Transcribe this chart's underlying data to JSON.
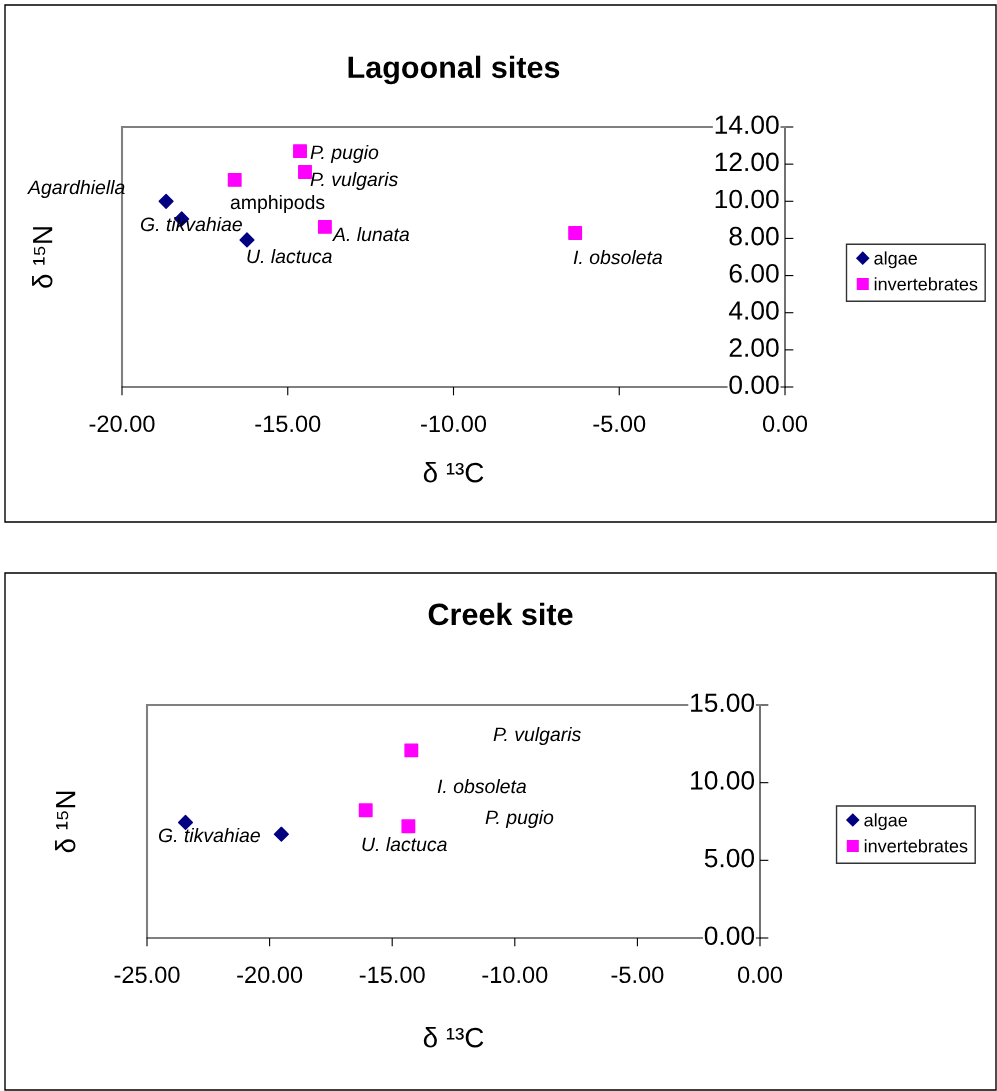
{
  "chart_data": [
    {
      "type": "scatter",
      "title": "Lagoonal sites",
      "xlabel": "δ ¹³C",
      "ylabel": "δ ¹⁵N",
      "series": [
        {
          "name": "algae",
          "color": "#000080",
          "marker": "diamond",
          "x": [
            -18.67,
            -18.2,
            -16.23
          ],
          "values": [
            10.0,
            9.05,
            7.92
          ]
        },
        {
          "name": "invertebrates",
          "color": "#ff00ff",
          "marker": "square",
          "x": [
            -16.6,
            -14.63,
            -14.48,
            -13.88,
            -6.33
          ],
          "values": [
            11.15,
            12.7,
            11.58,
            8.62,
            8.29
          ]
        }
      ],
      "annotations": [
        "Agardhiella",
        "amphipods",
        "G. tikvahiae",
        "U. lactuca",
        "P. pugio",
        "P. vulgaris",
        "A. lunata",
        "I. obsoleta"
      ],
      "xlim": [
        -20,
        0
      ],
      "xticks": [
        {
          "value": -20,
          "label": "-20.00"
        },
        {
          "value": -15,
          "label": "-15.00"
        },
        {
          "value": -10,
          "label": "-10.00"
        },
        {
          "value": -5,
          "label": "-5.00"
        },
        {
          "value": 0,
          "label": "0.00"
        }
      ],
      "ylim": [
        0,
        14
      ],
      "yticks": [
        {
          "value": 0,
          "label": "0.00"
        },
        {
          "value": 2,
          "label": "2.00"
        },
        {
          "value": 4,
          "label": "4.00"
        },
        {
          "value": 6,
          "label": "6.00"
        },
        {
          "value": 8,
          "label": "8.00"
        },
        {
          "value": 10,
          "label": "10.00"
        },
        {
          "value": 12,
          "label": "12.00"
        },
        {
          "value": 14,
          "label": "14.00"
        }
      ],
      "grid": false,
      "legend": "right"
    },
    {
      "type": "scatter",
      "title": "Creek site",
      "xlabel": "δ ¹³C",
      "ylabel": "δ ¹⁵N",
      "series": [
        {
          "name": "algae",
          "color": "#000080",
          "marker": "diamond",
          "x": [
            -23.43,
            -19.52
          ],
          "values": [
            7.44,
            6.68
          ]
        },
        {
          "name": "invertebrates",
          "color": "#ff00ff",
          "marker": "square",
          "x": [
            -14.22,
            -16.08,
            -14.34
          ],
          "values": [
            12.08,
            8.22,
            7.19
          ]
        }
      ],
      "annotations": [
        "P. vulgaris",
        "I. obsoleta",
        "P. pugio",
        "G. tikvahiae",
        "U. lactuca"
      ],
      "xlim": [
        -25,
        0
      ],
      "xticks": [
        {
          "value": -25,
          "label": "-25.00"
        },
        {
          "value": -20,
          "label": "-20.00"
        },
        {
          "value": -15,
          "label": "-15.00"
        },
        {
          "value": -10,
          "label": "-10.00"
        },
        {
          "value": -5,
          "label": "-5.00"
        },
        {
          "value": 0,
          "label": "0.00"
        }
      ],
      "ylim": [
        0,
        15
      ],
      "yticks": [
        {
          "value": 0,
          "label": "0.00"
        },
        {
          "value": 5,
          "label": "5.00"
        },
        {
          "value": 10,
          "label": "10.00"
        },
        {
          "value": 15,
          "label": "15.00"
        }
      ],
      "grid": false,
      "legend": "right"
    }
  ]
}
